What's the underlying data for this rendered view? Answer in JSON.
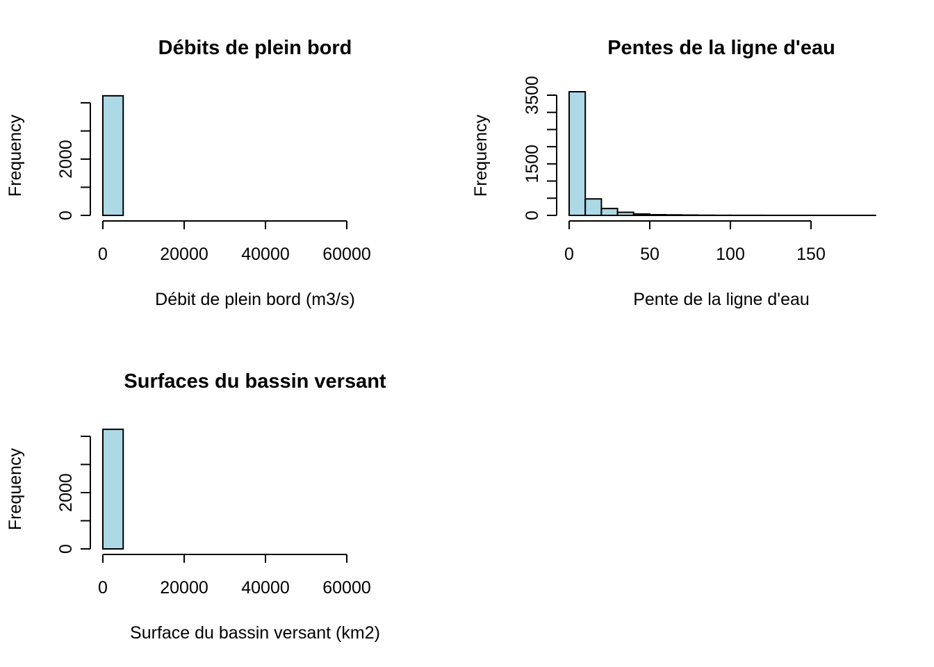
{
  "chart_data": [
    {
      "type": "bar",
      "title": "Débits de plein bord",
      "xlabel": "Débit de plein bord (m3/s)",
      "ylabel": "Frequency",
      "xlim": [
        0,
        75000
      ],
      "ylim": [
        0,
        4000
      ],
      "x_ticks": [
        0,
        20000,
        40000,
        60000
      ],
      "x_tick_labels": [
        "0",
        "20000",
        "40000",
        "60000"
      ],
      "y_ticks": [
        0,
        1000,
        2000,
        3000,
        4000
      ],
      "y_tick_labels": [
        "0",
        "",
        "2000",
        "",
        ""
      ],
      "bin_edges": [
        0,
        5000
      ],
      "values": [
        4250
      ],
      "bar_color": "#add8e6"
    },
    {
      "type": "bar",
      "title": "Pentes de la ligne d'eau",
      "xlabel": "Pente de la ligne d'eau",
      "ylabel": "Frequency",
      "xlim": [
        0,
        190
      ],
      "ylim": [
        0,
        3500
      ],
      "x_ticks": [
        0,
        50,
        100,
        150
      ],
      "x_tick_labels": [
        "0",
        "50",
        "100",
        "150"
      ],
      "y_ticks": [
        0,
        500,
        1000,
        1500,
        2000,
        2500,
        3000,
        3500
      ],
      "y_tick_labels": [
        "0",
        "",
        "",
        "1500",
        "",
        "",
        "",
        "3500"
      ],
      "bin_edges": [
        0,
        10,
        20,
        30,
        40,
        50,
        60,
        70,
        80,
        90,
        100,
        110,
        120,
        130,
        140,
        150,
        160,
        170,
        180,
        190
      ],
      "values": [
        3600,
        480,
        200,
        90,
        40,
        20,
        15,
        10,
        5,
        3,
        2,
        2,
        1,
        1,
        1,
        1,
        1,
        1,
        1
      ],
      "bar_color": "#add8e6"
    },
    {
      "type": "bar",
      "title": "Surfaces du bassin versant",
      "xlabel": "Surface du bassin versant (km2)",
      "ylabel": "Frequency",
      "xlim": [
        0,
        75000
      ],
      "ylim": [
        0,
        4000
      ],
      "x_ticks": [
        0,
        20000,
        40000,
        60000
      ],
      "x_tick_labels": [
        "0",
        "20000",
        "40000",
        "60000"
      ],
      "y_ticks": [
        0,
        1000,
        2000,
        3000,
        4000
      ],
      "y_tick_labels": [
        "0",
        "",
        "2000",
        "",
        ""
      ],
      "bin_edges": [
        0,
        5000
      ],
      "values": [
        4250
      ],
      "bar_color": "#add8e6"
    }
  ]
}
